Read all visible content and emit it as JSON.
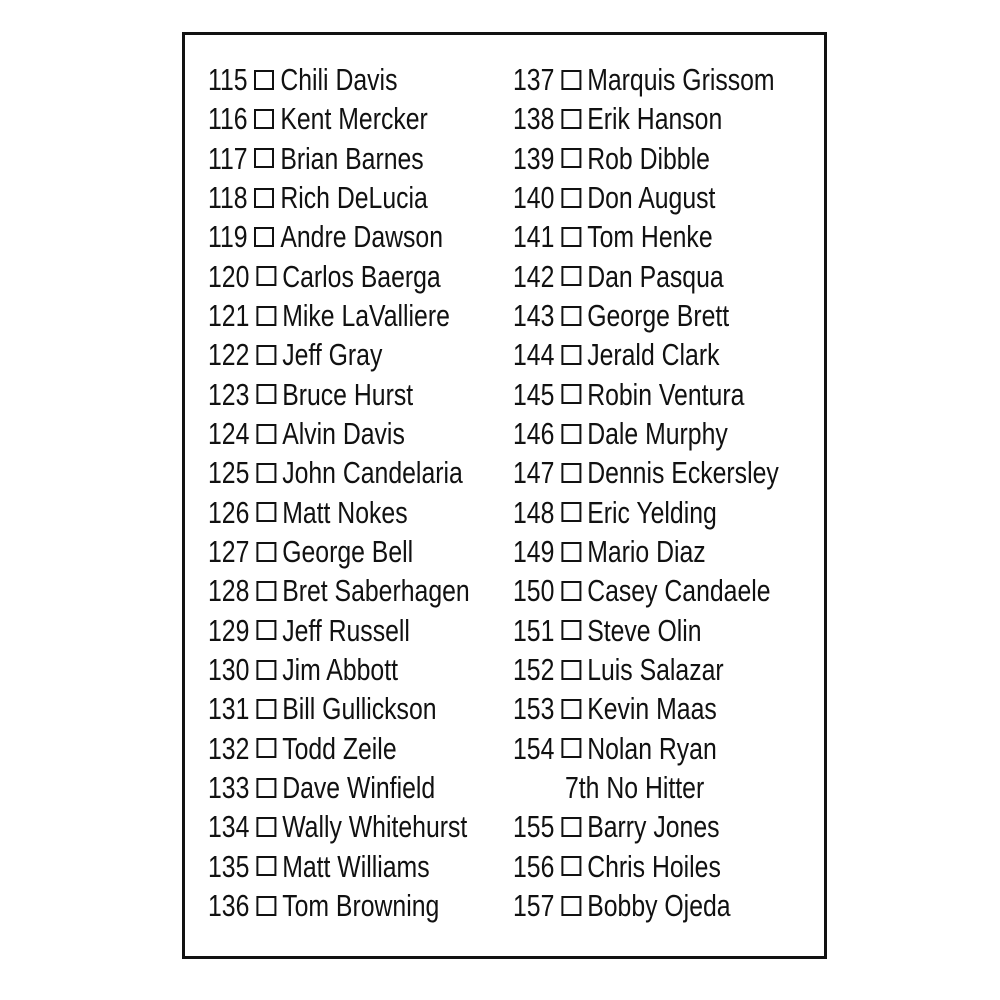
{
  "checklist": {
    "left_column": [
      {
        "number": "115",
        "name": "Chili Davis"
      },
      {
        "number": "116",
        "name": "Kent Mercker"
      },
      {
        "number": "117",
        "name": "Brian Barnes"
      },
      {
        "number": "118",
        "name": "Rich DeLucia"
      },
      {
        "number": "119",
        "name": "Andre Dawson"
      },
      {
        "number": "120",
        "name": "Carlos Baerga"
      },
      {
        "number": "121",
        "name": "Mike LaValliere"
      },
      {
        "number": "122",
        "name": "Jeff Gray"
      },
      {
        "number": "123",
        "name": "Bruce Hurst"
      },
      {
        "number": "124",
        "name": "Alvin Davis"
      },
      {
        "number": "125",
        "name": "John Candelaria"
      },
      {
        "number": "126",
        "name": "Matt Nokes"
      },
      {
        "number": "127",
        "name": "George Bell"
      },
      {
        "number": "128",
        "name": "Bret Saberhagen"
      },
      {
        "number": "129",
        "name": "Jeff Russell"
      },
      {
        "number": "130",
        "name": "Jim Abbott"
      },
      {
        "number": "131",
        "name": "Bill Gullickson"
      },
      {
        "number": "132",
        "name": "Todd Zeile"
      },
      {
        "number": "133",
        "name": "Dave Winfield"
      },
      {
        "number": "134",
        "name": "Wally Whitehurst"
      },
      {
        "number": "135",
        "name": "Matt Williams"
      },
      {
        "number": "136",
        "name": "Tom Browning"
      }
    ],
    "right_column": [
      {
        "number": "137",
        "name": "Marquis Grissom"
      },
      {
        "number": "138",
        "name": "Erik Hanson"
      },
      {
        "number": "139",
        "name": "Rob Dibble"
      },
      {
        "number": "140",
        "name": "Don August"
      },
      {
        "number": "141",
        "name": "Tom Henke"
      },
      {
        "number": "142",
        "name": "Dan Pasqua"
      },
      {
        "number": "143",
        "name": "George Brett"
      },
      {
        "number": "144",
        "name": "Jerald Clark"
      },
      {
        "number": "145",
        "name": "Robin Ventura"
      },
      {
        "number": "146",
        "name": "Dale Murphy"
      },
      {
        "number": "147",
        "name": "Dennis Eckersley"
      },
      {
        "number": "148",
        "name": "Eric Yelding"
      },
      {
        "number": "149",
        "name": "Mario Diaz"
      },
      {
        "number": "150",
        "name": "Casey Candaele"
      },
      {
        "number": "151",
        "name": "Steve Olin"
      },
      {
        "number": "152",
        "name": "Luis Salazar"
      },
      {
        "number": "153",
        "name": "Kevin Maas"
      },
      {
        "number": "154",
        "name": "Nolan Ryan"
      },
      {
        "continuation": "7th No Hitter"
      },
      {
        "number": "155",
        "name": "Barry Jones"
      },
      {
        "number": "156",
        "name": "Chris Hoiles"
      },
      {
        "number": "157",
        "name": "Bobby Ojeda"
      }
    ]
  }
}
